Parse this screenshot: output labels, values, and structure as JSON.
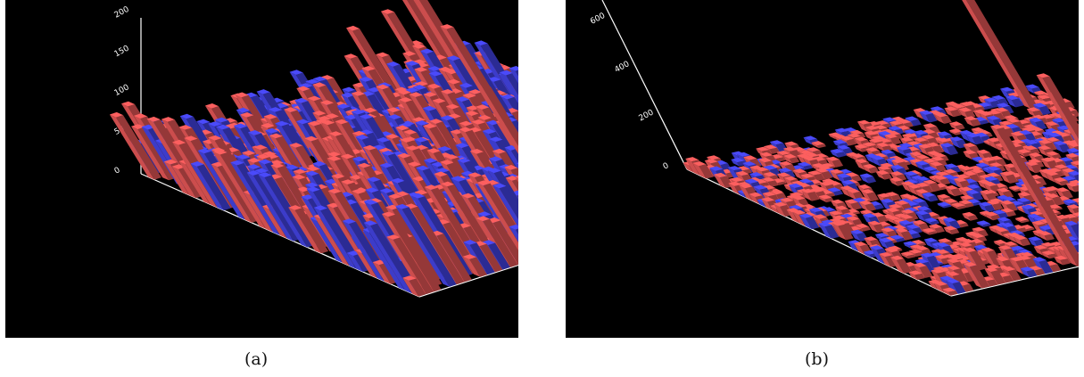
{
  "figure": {
    "captions": [
      "(a)",
      "(b)"
    ]
  },
  "colors": {
    "background": "#000000",
    "axis": "#ffffff",
    "series_red": "#f05a5a",
    "series_blue": "#4646ee"
  },
  "chart_data": [
    {
      "type": "bar3d",
      "caption": "(a)",
      "z_ticks": [
        "0",
        "50",
        "100",
        "150",
        "200"
      ],
      "zlim": [
        0,
        200
      ],
      "grid": false,
      "tall_bars": [
        {
          "color": "red",
          "value": 190
        },
        {
          "color": "red",
          "value": 170
        },
        {
          "color": "red",
          "value": 160
        },
        {
          "color": "red",
          "value": 150
        }
      ],
      "cluster_groups": 3
    },
    {
      "type": "bar3d",
      "caption": "(b)",
      "z_ticks": [
        "0",
        "200",
        "400",
        "600"
      ],
      "zlim": [
        0,
        700
      ],
      "grid": false,
      "tall_bars": [
        {
          "color": "red",
          "value": 620
        },
        {
          "color": "red",
          "value": 420
        },
        {
          "color": "red",
          "value": 700
        }
      ],
      "cluster_groups": 3
    }
  ]
}
